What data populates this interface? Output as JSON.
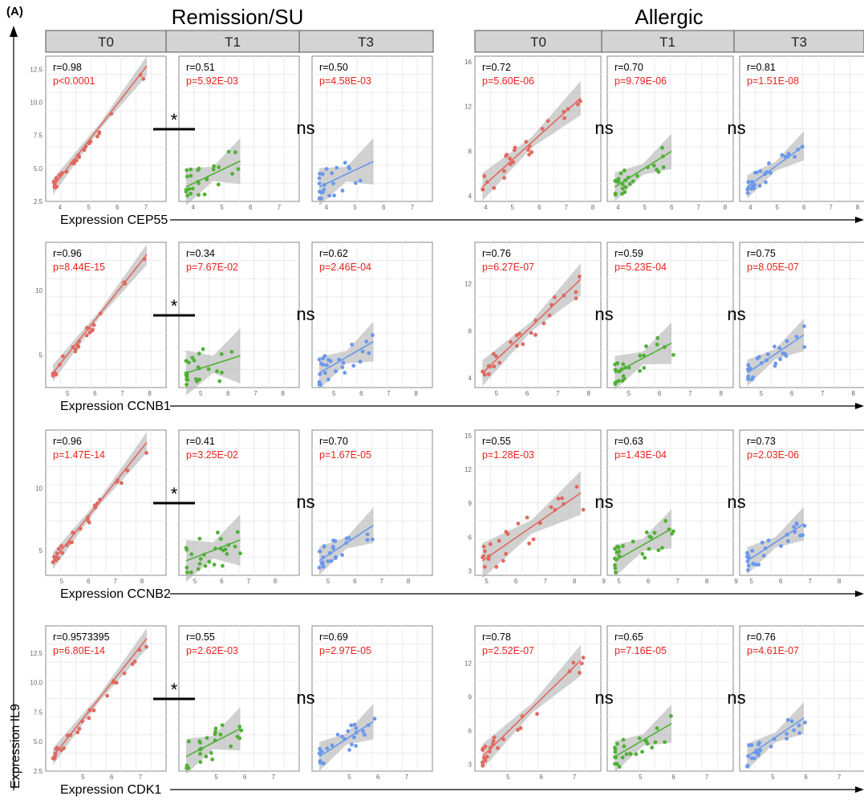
{
  "panel_label": "(A)",
  "groups": [
    {
      "title": "Remission/SU",
      "times": [
        "T0",
        "T1",
        "T3"
      ]
    },
    {
      "title": "Allergic",
      "times": [
        "T0",
        "T1",
        "T3"
      ]
    }
  ],
  "y_axis_label": "Expression IL9",
  "colors": {
    "T0": "#e0695f",
    "T1": "#4fb134",
    "T3": "#6a98ec",
    "p_value": "#e8231d",
    "strip": "#d4d4d4",
    "band": "#b3b3b3"
  },
  "chart_data": [
    {
      "gene": "CEP55",
      "x_label": "Expression CEP55",
      "remission": {
        "panels": [
          {
            "time": "T0",
            "r": "r=0.98",
            "p": "p<0.0001"
          },
          {
            "time": "T1",
            "r": "r=0.51",
            "p": "p=5.92E-03"
          },
          {
            "time": "T3",
            "r": "r=0.50",
            "p": "p=4.58E-03"
          }
        ],
        "xlim": [
          3.5,
          7.7
        ],
        "x_ticks": [
          4,
          5,
          6,
          7
        ],
        "ylim": [
          2.5,
          13.5
        ],
        "y_ticks": [
          "2.5",
          "5.0",
          "7.5",
          "10.0",
          "12.5"
        ],
        "annotations": [
          "*",
          "ns"
        ]
      },
      "allergic": {
        "panels": [
          {
            "time": "T0",
            "r": "r=0.72",
            "p": "p=5.60E-06"
          },
          {
            "time": "T1",
            "r": "r=0.70",
            "p": "p=9.79E-06"
          },
          {
            "time": "T3",
            "r": "r=0.81",
            "p": "p=1.51E-08"
          }
        ],
        "xlim": [
          3.6,
          8.3
        ],
        "x_ticks": [
          4,
          5,
          6,
          7,
          8
        ],
        "ylim": [
          3.5,
          16.5
        ],
        "y_ticks": [
          "4",
          "8",
          "12",
          "16"
        ],
        "annotations": [
          "ns",
          "ns"
        ]
      }
    },
    {
      "gene": "CCNB1",
      "x_label": "Expression CCNB1",
      "remission": {
        "panels": [
          {
            "time": "T0",
            "r": "r=0.96",
            "p": "p=8.44E-15"
          },
          {
            "time": "T1",
            "r": "r=0.34",
            "p": "p=7.67E-02"
          },
          {
            "time": "T3",
            "r": "r=0.62",
            "p": "p=2.46E-04"
          }
        ],
        "xlim": [
          4.2,
          8.6
        ],
        "x_ticks": [
          5,
          6,
          7,
          8
        ],
        "ylim": [
          2.5,
          13.7
        ],
        "y_ticks": [
          "5",
          "10"
        ],
        "annotations": [
          "*",
          "ns"
        ]
      },
      "allergic": {
        "panels": [
          {
            "time": "T0",
            "r": "r=0.76",
            "p": "p=6.27E-07"
          },
          {
            "time": "T1",
            "r": "r=0.59",
            "p": "p=5.23E-04"
          },
          {
            "time": "T3",
            "r": "r=0.75",
            "p": "p=8.05E-07"
          }
        ],
        "xlim": [
          4.3,
          8.4
        ],
        "x_ticks": [
          5,
          6,
          7,
          8
        ],
        "ylim": [
          3.2,
          15.5
        ],
        "y_ticks": [
          "4",
          "8",
          "12"
        ],
        "annotations": [
          "ns",
          "ns"
        ]
      }
    },
    {
      "gene": "CCNB2",
      "x_label": "Expression CCNB2",
      "remission": {
        "panels": [
          {
            "time": "T0",
            "r": "r=0.96",
            "p": "p=1.47E-14"
          },
          {
            "time": "T1",
            "r": "r=0.41",
            "p": "p=3.25E-02"
          },
          {
            "time": "T3",
            "r": "r=0.70",
            "p": "p=1.67E-05"
          }
        ],
        "xlim": [
          4.4,
          8.9
        ],
        "x_ticks": [
          5,
          6,
          7,
          8
        ],
        "ylim": [
          3.0,
          14.7
        ],
        "y_ticks": [
          "5",
          "10"
        ],
        "annotations": [
          "*",
          "ns"
        ]
      },
      "allergic": {
        "panels": [
          {
            "time": "T0",
            "r": "r=0.55",
            "p": "p=1.28E-03"
          },
          {
            "time": "T1",
            "r": "r=0.63",
            "p": "p=1.43E-04"
          },
          {
            "time": "T3",
            "r": "r=0.73",
            "p": "p=2.03E-06"
          }
        ],
        "xlim": [
          4.6,
          8.9
        ],
        "x_ticks": [
          5,
          6,
          7,
          8,
          9
        ],
        "ylim": [
          2.6,
          15.5
        ],
        "y_ticks": [
          "3",
          "6",
          "9",
          "12",
          "15"
        ],
        "annotations": [
          "ns",
          "ns"
        ]
      }
    },
    {
      "gene": "CDK1",
      "x_label": "Expression CDK1",
      "remission": {
        "panels": [
          {
            "time": "T0",
            "r": "r=0.9573395",
            "p": "p=6.80E-14"
          },
          {
            "time": "T1",
            "r": "r=0.55",
            "p": "p=2.62E-03"
          },
          {
            "time": "T3",
            "r": "r=0.69",
            "p": "p=2.97E-05"
          }
        ],
        "xlim": [
          3.7,
          7.9
        ],
        "x_ticks": [
          5,
          6,
          7
        ],
        "ylim": [
          2.5,
          14.8
        ],
        "y_ticks": [
          "2.5",
          "5.0",
          "7.5",
          "10.0",
          "12.5"
        ],
        "annotations": [
          "*",
          "ns"
        ]
      },
      "allergic": {
        "panels": [
          {
            "time": "T0",
            "r": "r=0.78",
            "p": "p=2.52E-07"
          },
          {
            "time": "T1",
            "r": "r=0.65",
            "p": "p=7.16E-05"
          },
          {
            "time": "T3",
            "r": "r=0.76",
            "p": "p=4.61E-07"
          }
        ],
        "xlim": [
          4.0,
          7.8
        ],
        "x_ticks": [
          5,
          6,
          7
        ],
        "ylim": [
          2.4,
          15.3
        ],
        "y_ticks": [
          "3",
          "6",
          "9",
          "12"
        ],
        "annotations": [
          "ns",
          "ns"
        ]
      }
    }
  ]
}
